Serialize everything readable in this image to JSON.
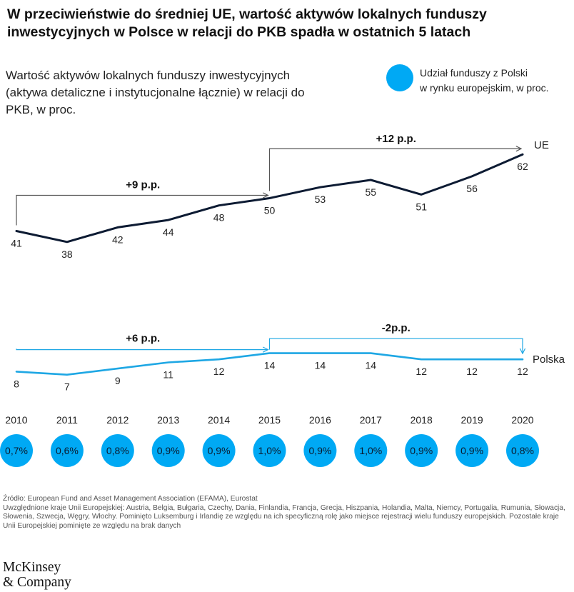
{
  "title": "W przeciwieństwie do średniej UE, wartość aktywów lokalnych funduszy inwestycyjnych w Polsce w relacji do PKB spadła w ostatnich 5 latach",
  "subtitle": "Wartość aktywów lokalnych funduszy inwestycyjnych (aktywa detaliczne i instytucjonalne łącznie) w relacji do PKB, w proc.",
  "legend": {
    "label_line1": "Udział funduszy z Polski",
    "label_line2": "w rynku europejskim, w proc."
  },
  "chart_data": {
    "type": "line",
    "x": [
      "2010",
      "2011",
      "2012",
      "2013",
      "2014",
      "2015",
      "2016",
      "2017",
      "2018",
      "2019",
      "2020"
    ],
    "series": [
      {
        "name": "UE",
        "values": [
          41,
          38,
          42,
          44,
          48,
          50,
          53,
          55,
          51,
          56,
          62
        ],
        "color": "#0d1b33",
        "ylim": [
          36,
          64
        ]
      },
      {
        "name": "Polska",
        "values": [
          8,
          7,
          9,
          11,
          12,
          14,
          14,
          14,
          12,
          12,
          12
        ],
        "color": "#1ea7e4",
        "ylim": [
          6,
          16
        ]
      }
    ],
    "bubbles": {
      "label": "Udział funduszy z Polski w rynku europejskim, w proc.",
      "values": [
        "0,7%",
        "0,6%",
        "0,8%",
        "0,9%",
        "0,9%",
        "1,0%",
        "0,9%",
        "1,0%",
        "0,9%",
        "0,9%",
        "0,8%"
      ],
      "color": "#00a9f4"
    },
    "annotations": [
      {
        "series": "UE",
        "label": "+9 p.p.",
        "from": "2010",
        "to": "2015"
      },
      {
        "series": "UE",
        "label": "+12 p.p.",
        "from": "2015",
        "to": "2020"
      },
      {
        "series": "Polska",
        "label": "+6 p.p.",
        "from": "2010",
        "to": "2015"
      },
      {
        "series": "Polska",
        "label": "-2p.p.",
        "from": "2015",
        "to": "2020"
      }
    ]
  },
  "notes": {
    "line1": "Źródło: European Fund and Asset Management Association (EFAMA), Eurostat",
    "line2": "Uwzględnione kraje Unii Europejskiej: Austria, Belgia, Bułgaria, Czechy, Dania, Finlandia, Francja, Grecja, Hiszpania, Holandia, Malta, Niemcy, Portugalia, Rumunia, Słowacja, Słowenia, Szwecja, Węgry, Włochy. Pominięto Luksemburg i Irlandię ze względu na ich specyficzną rolę jako miejsce rejestracji wielu funduszy europejskich. Pozostałe kraje Unii Europejskiej pominięte ze względu na brak danych"
  },
  "logo": {
    "line1": "McKinsey",
    "line2": "& Company"
  }
}
